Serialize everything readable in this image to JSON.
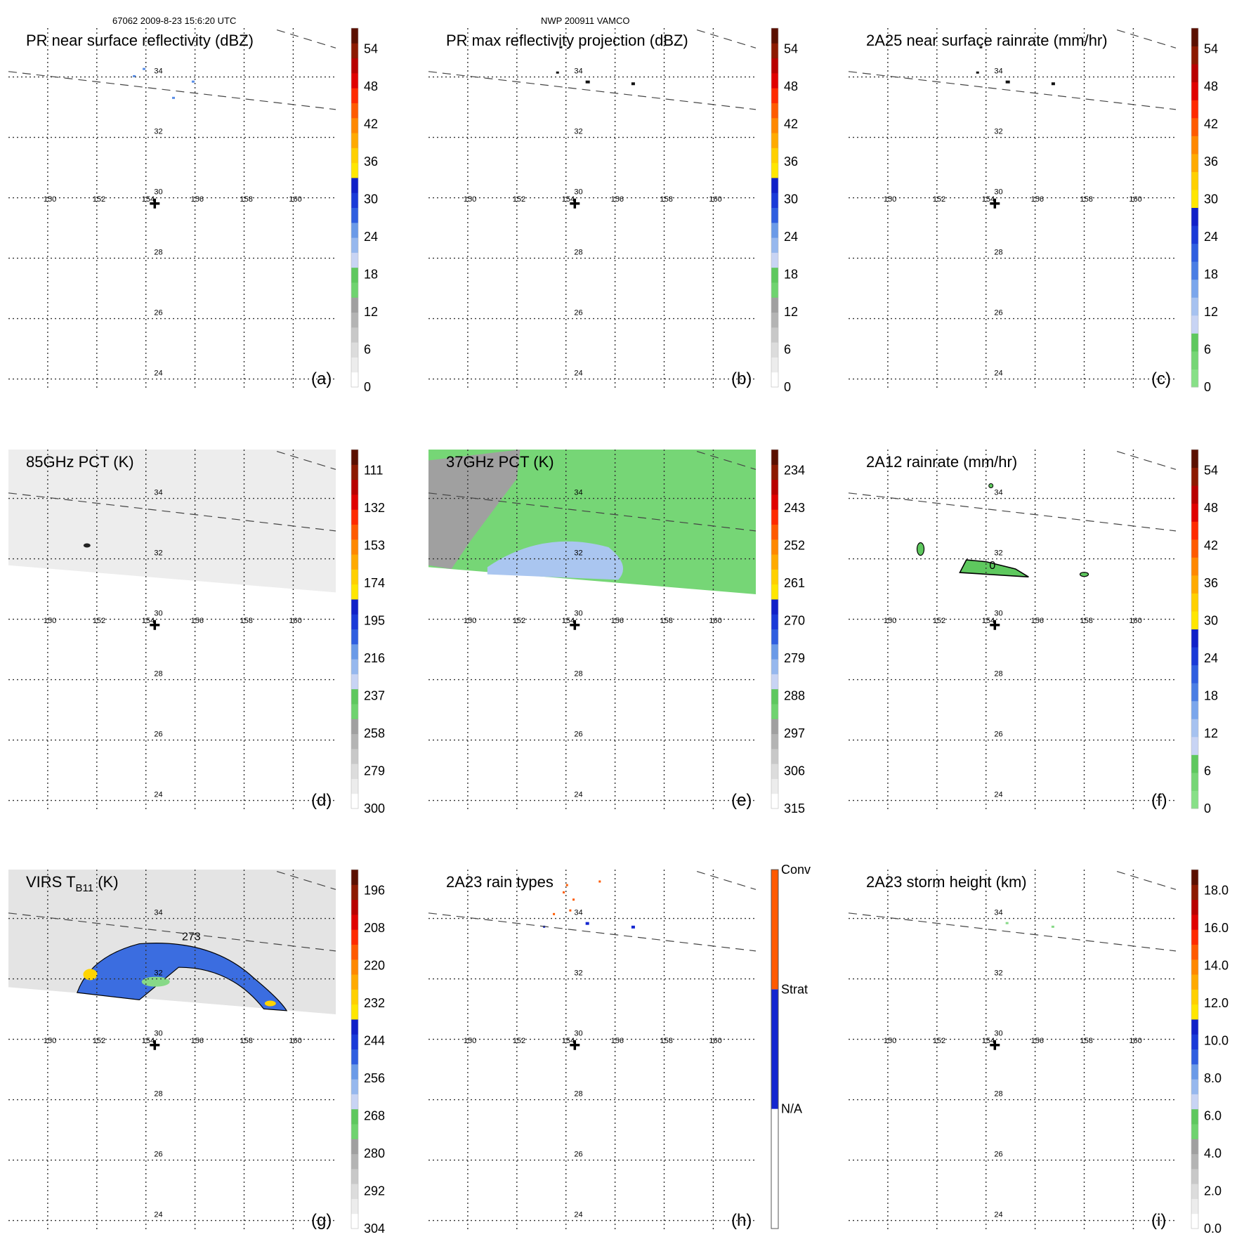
{
  "header": {
    "left": "67062 2009-8-23 15:6:20 UTC",
    "center": "NWP 200911 VAMCO"
  },
  "map": {
    "lon_ticks": [
      "150",
      "152",
      "154",
      "156",
      "158",
      "160"
    ],
    "lat_ticks": [
      "34",
      "32",
      "30",
      "28",
      "26",
      "24"
    ]
  },
  "colors": {
    "scale": [
      "#ffffff",
      "#ececec",
      "#d6d6d6",
      "#bdbdbd",
      "#a0a0a0",
      "#87d987",
      "#5ec85e",
      "#c8d4f4",
      "#96b8ee",
      "#5a8ee6",
      "#2f5ee0",
      "#1426d0",
      "#ffd400",
      "#ffe800",
      "#ffb000",
      "#ff8c00",
      "#ff5a00",
      "#ff2a00",
      "#e00000",
      "#b80000",
      "#8c1a00",
      "#5a1000"
    ],
    "rain_type_conv": "#ff5a00",
    "rain_type_strat": "#1426d0",
    "rain_type_na": "#ffffff"
  },
  "chart_data": [
    {
      "id": "a",
      "type": "heatmap",
      "label": "(a)",
      "title": "PR near surface reflectivity (dBZ)",
      "colorbar_ticks": [
        "54",
        "48",
        "42",
        "36",
        "30",
        "24",
        "18",
        "12",
        "6",
        "0"
      ],
      "colorbar_mode": "dbz"
    },
    {
      "id": "b",
      "type": "heatmap",
      "label": "(b)",
      "title": "PR max reflectivity projection (dBZ)",
      "colorbar_ticks": [
        "54",
        "48",
        "42",
        "36",
        "30",
        "24",
        "18",
        "12",
        "6",
        "0"
      ],
      "colorbar_mode": "dbz"
    },
    {
      "id": "c",
      "type": "heatmap",
      "label": "(c)",
      "title": "2A25 near surface rainrate (mm/hr)",
      "colorbar_ticks": [
        "54",
        "48",
        "42",
        "36",
        "30",
        "24",
        "18",
        "12",
        "6",
        "0"
      ],
      "colorbar_mode": "rain"
    },
    {
      "id": "d",
      "type": "heatmap",
      "label": "(d)",
      "title": "85GHz PCT (K)",
      "colorbar_ticks": [
        "111",
        "132",
        "153",
        "174",
        "195",
        "216",
        "237",
        "258",
        "279",
        "300"
      ],
      "colorbar_mode": "temp"
    },
    {
      "id": "e",
      "type": "heatmap",
      "label": "(e)",
      "title": "37GHz PCT (K)",
      "colorbar_ticks": [
        "234",
        "243",
        "252",
        "261",
        "270",
        "279",
        "288",
        "297",
        "306",
        "315"
      ],
      "colorbar_mode": "temp"
    },
    {
      "id": "f",
      "type": "heatmap",
      "label": "(f)",
      "title": "2A12 rainrate (mm/hr)",
      "colorbar_ticks": [
        "54",
        "48",
        "42",
        "36",
        "30",
        "24",
        "18",
        "12",
        "6",
        "0"
      ],
      "colorbar_mode": "rain",
      "contour_label": "0"
    },
    {
      "id": "g",
      "type": "heatmap",
      "label": "(g)",
      "title_main": "VIRS T",
      "title_sub": "B11",
      "title_unit": " (K)",
      "colorbar_ticks": [
        "196",
        "208",
        "220",
        "232",
        "244",
        "256",
        "268",
        "280",
        "292",
        "304"
      ],
      "colorbar_mode": "temp",
      "contour_label": "273"
    },
    {
      "id": "h",
      "type": "heatmap",
      "label": "(h)",
      "title": "2A23 rain types",
      "colorbar_categories": [
        "Conv",
        "Strat",
        "N/A"
      ],
      "colorbar_mode": "category"
    },
    {
      "id": "i",
      "type": "heatmap",
      "label": "(i)",
      "title": "2A23 storm height (km)",
      "colorbar_ticks": [
        "18.0",
        "16.0",
        "14.0",
        "12.0",
        "10.0",
        "8.0",
        "6.0",
        "4.0",
        "2.0",
        "0.0"
      ],
      "colorbar_mode": "height"
    }
  ]
}
